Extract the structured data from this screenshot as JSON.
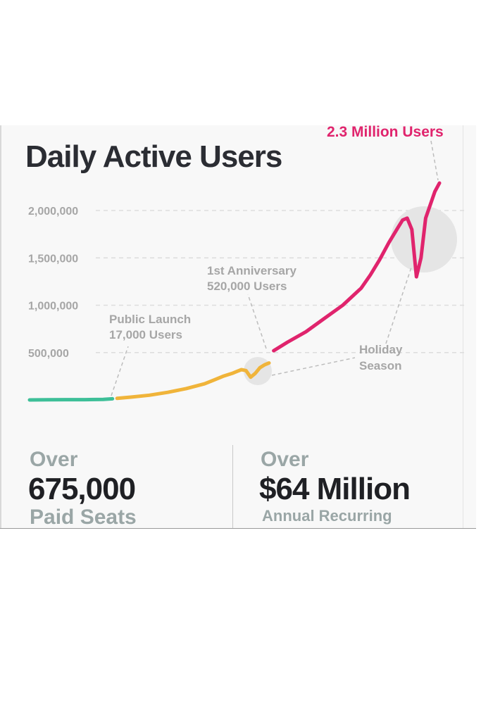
{
  "chart_data": {
    "type": "line",
    "title": "Daily Active Users",
    "yticks": [
      {
        "value": 2000000,
        "label": "2,000,000"
      },
      {
        "value": 1500000,
        "label": "1,500,000"
      },
      {
        "value": 1000000,
        "label": "1,000,000"
      },
      {
        "value": 500000,
        "label": "500,000"
      }
    ],
    "ylim": [
      0,
      2300000
    ],
    "grid": true,
    "series": [
      {
        "color": "#3dbf98",
        "points": [
          [
            0,
            0
          ],
          [
            4,
            2000
          ],
          [
            8,
            3000
          ],
          [
            12,
            3000
          ],
          [
            16,
            6000
          ],
          [
            18,
            12000
          ]
        ]
      },
      {
        "color": "#f0b43a",
        "points": [
          [
            19,
            17000
          ],
          [
            22,
            30000
          ],
          [
            26,
            50000
          ],
          [
            30,
            80000
          ],
          [
            34,
            120000
          ],
          [
            38,
            170000
          ],
          [
            40,
            210000
          ],
          [
            42,
            250000
          ],
          [
            44,
            280000
          ],
          [
            45,
            300000
          ],
          [
            46,
            320000
          ],
          [
            47,
            310000
          ],
          [
            48,
            240000
          ],
          [
            49,
            280000
          ],
          [
            50,
            340000
          ],
          [
            51,
            370000
          ],
          [
            52,
            390000
          ]
        ]
      },
      {
        "color": "#e0246d",
        "points": [
          [
            53,
            520000
          ],
          [
            56,
            610000
          ],
          [
            60,
            720000
          ],
          [
            64,
            860000
          ],
          [
            68,
            1000000
          ],
          [
            72,
            1180000
          ],
          [
            74,
            1320000
          ],
          [
            76,
            1480000
          ],
          [
            78,
            1660000
          ],
          [
            80,
            1820000
          ],
          [
            81,
            1900000
          ],
          [
            82,
            1920000
          ],
          [
            83,
            1800000
          ],
          [
            84,
            1300000
          ],
          [
            85,
            1500000
          ],
          [
            86,
            1920000
          ],
          [
            88,
            2200000
          ],
          [
            89,
            2290000
          ]
        ]
      }
    ],
    "annotations": [
      {
        "lines": [
          "Public Launch",
          "17,000 Users"
        ]
      },
      {
        "lines": [
          "1st Anniversary",
          "520,000 Users"
        ]
      },
      {
        "lines": [
          "Holiday",
          "Season"
        ]
      },
      {
        "lines": [
          "2.3 Million Users"
        ],
        "color": "#e0246d"
      }
    ],
    "colors": {
      "grid": "#dddddd",
      "tick": "#a6a6a6",
      "annotation": "#a6a6a6",
      "leader": "#bdbdbd",
      "highlight": "#e5e5e5"
    }
  },
  "stats": [
    {
      "over": "Over",
      "value": "675,000",
      "label": "Paid Seats"
    },
    {
      "over": "Over",
      "value": "$64 Million",
      "label": "Annual Recurring"
    }
  ]
}
